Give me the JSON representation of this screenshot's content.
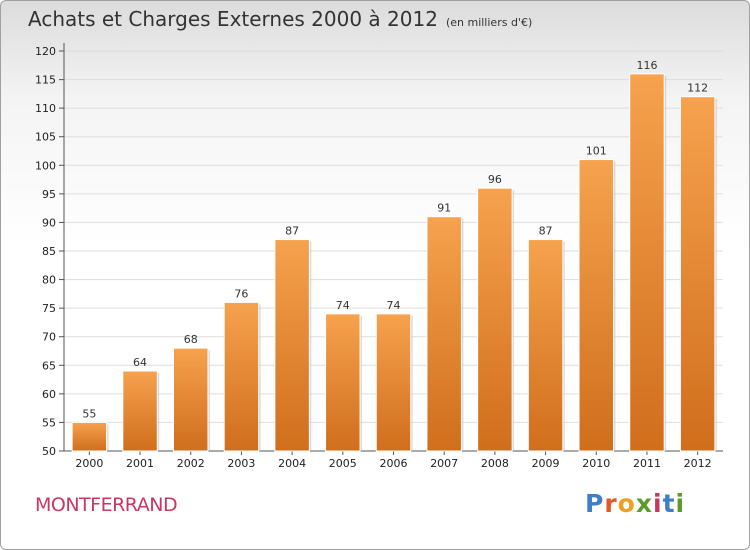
{
  "header": {
    "title": "Achats et Charges Externes 2000 à 2012",
    "subtitle": "(en milliers d'€)"
  },
  "commune": "MONTFERRAND",
  "logo": {
    "letters": [
      "P",
      "r",
      "o",
      "x",
      "i",
      "t",
      "i"
    ],
    "colors": [
      "#3c7fc8",
      "#e05a2a",
      "#f0a020",
      "#5a9c2a",
      "#c8375f",
      "#3c7fc8",
      "#5a9c2a"
    ]
  },
  "colors": {
    "bar_top": "#f6a24e",
    "bar_bottom": "#d06e1c",
    "grid": "#dddddd"
  },
  "chart_data": {
    "type": "bar",
    "title": "Achats et Charges Externes 2000 à 2012",
    "subtitle": "(en milliers d'€)",
    "categories": [
      "2000",
      "2001",
      "2002",
      "2003",
      "2004",
      "2005",
      "2006",
      "2007",
      "2008",
      "2009",
      "2010",
      "2011",
      "2012"
    ],
    "values": [
      55,
      64,
      68,
      76,
      87,
      74,
      74,
      91,
      96,
      87,
      101,
      116,
      112
    ],
    "ylim": [
      50,
      120
    ],
    "yticks": [
      50,
      55,
      60,
      65,
      70,
      75,
      80,
      85,
      90,
      95,
      100,
      105,
      110,
      115,
      120
    ],
    "grid": true,
    "data_labels": true
  }
}
